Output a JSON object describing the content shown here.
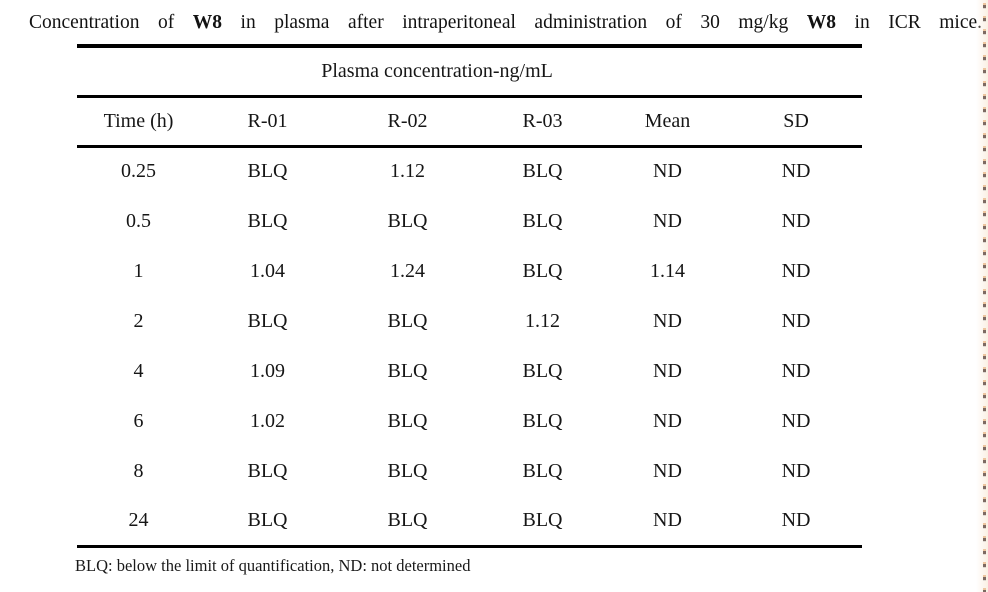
{
  "caption": {
    "prefix": "Concentration of ",
    "compound_1": "W8",
    "middle": " in plasma after intraperitoneal administration of 30 mg/kg ",
    "compound_2": "W8",
    "suffix": " in ICR mice."
  },
  "table": {
    "group_header": "Plasma concentration-ng/mL",
    "columns": [
      "Time (h)",
      "R-01",
      "R-02",
      "R-03",
      "Mean",
      "SD"
    ],
    "rows": [
      [
        "0.25",
        "BLQ",
        "1.12",
        "BLQ",
        "ND",
        "ND"
      ],
      [
        "0.5",
        "BLQ",
        "BLQ",
        "BLQ",
        "ND",
        "ND"
      ],
      [
        "1",
        "1.04",
        "1.24",
        "BLQ",
        "1.14",
        "ND"
      ],
      [
        "2",
        "BLQ",
        "BLQ",
        "1.12",
        "ND",
        "ND"
      ],
      [
        "4",
        "1.09",
        "BLQ",
        "BLQ",
        "ND",
        "ND"
      ],
      [
        "6",
        "1.02",
        "BLQ",
        "BLQ",
        "ND",
        "ND"
      ],
      [
        "8",
        "BLQ",
        "BLQ",
        "BLQ",
        "ND",
        "ND"
      ],
      [
        "24",
        "BLQ",
        "BLQ",
        "BLQ",
        "ND",
        "ND"
      ]
    ]
  },
  "footnote": "BLQ: below the limit of quantification, ND: not determined",
  "colors": {
    "text": "#151515",
    "rule": "#000000",
    "background": "#ffffff",
    "edge_dash": "#523c34",
    "edge_tint": "#e09e60"
  }
}
